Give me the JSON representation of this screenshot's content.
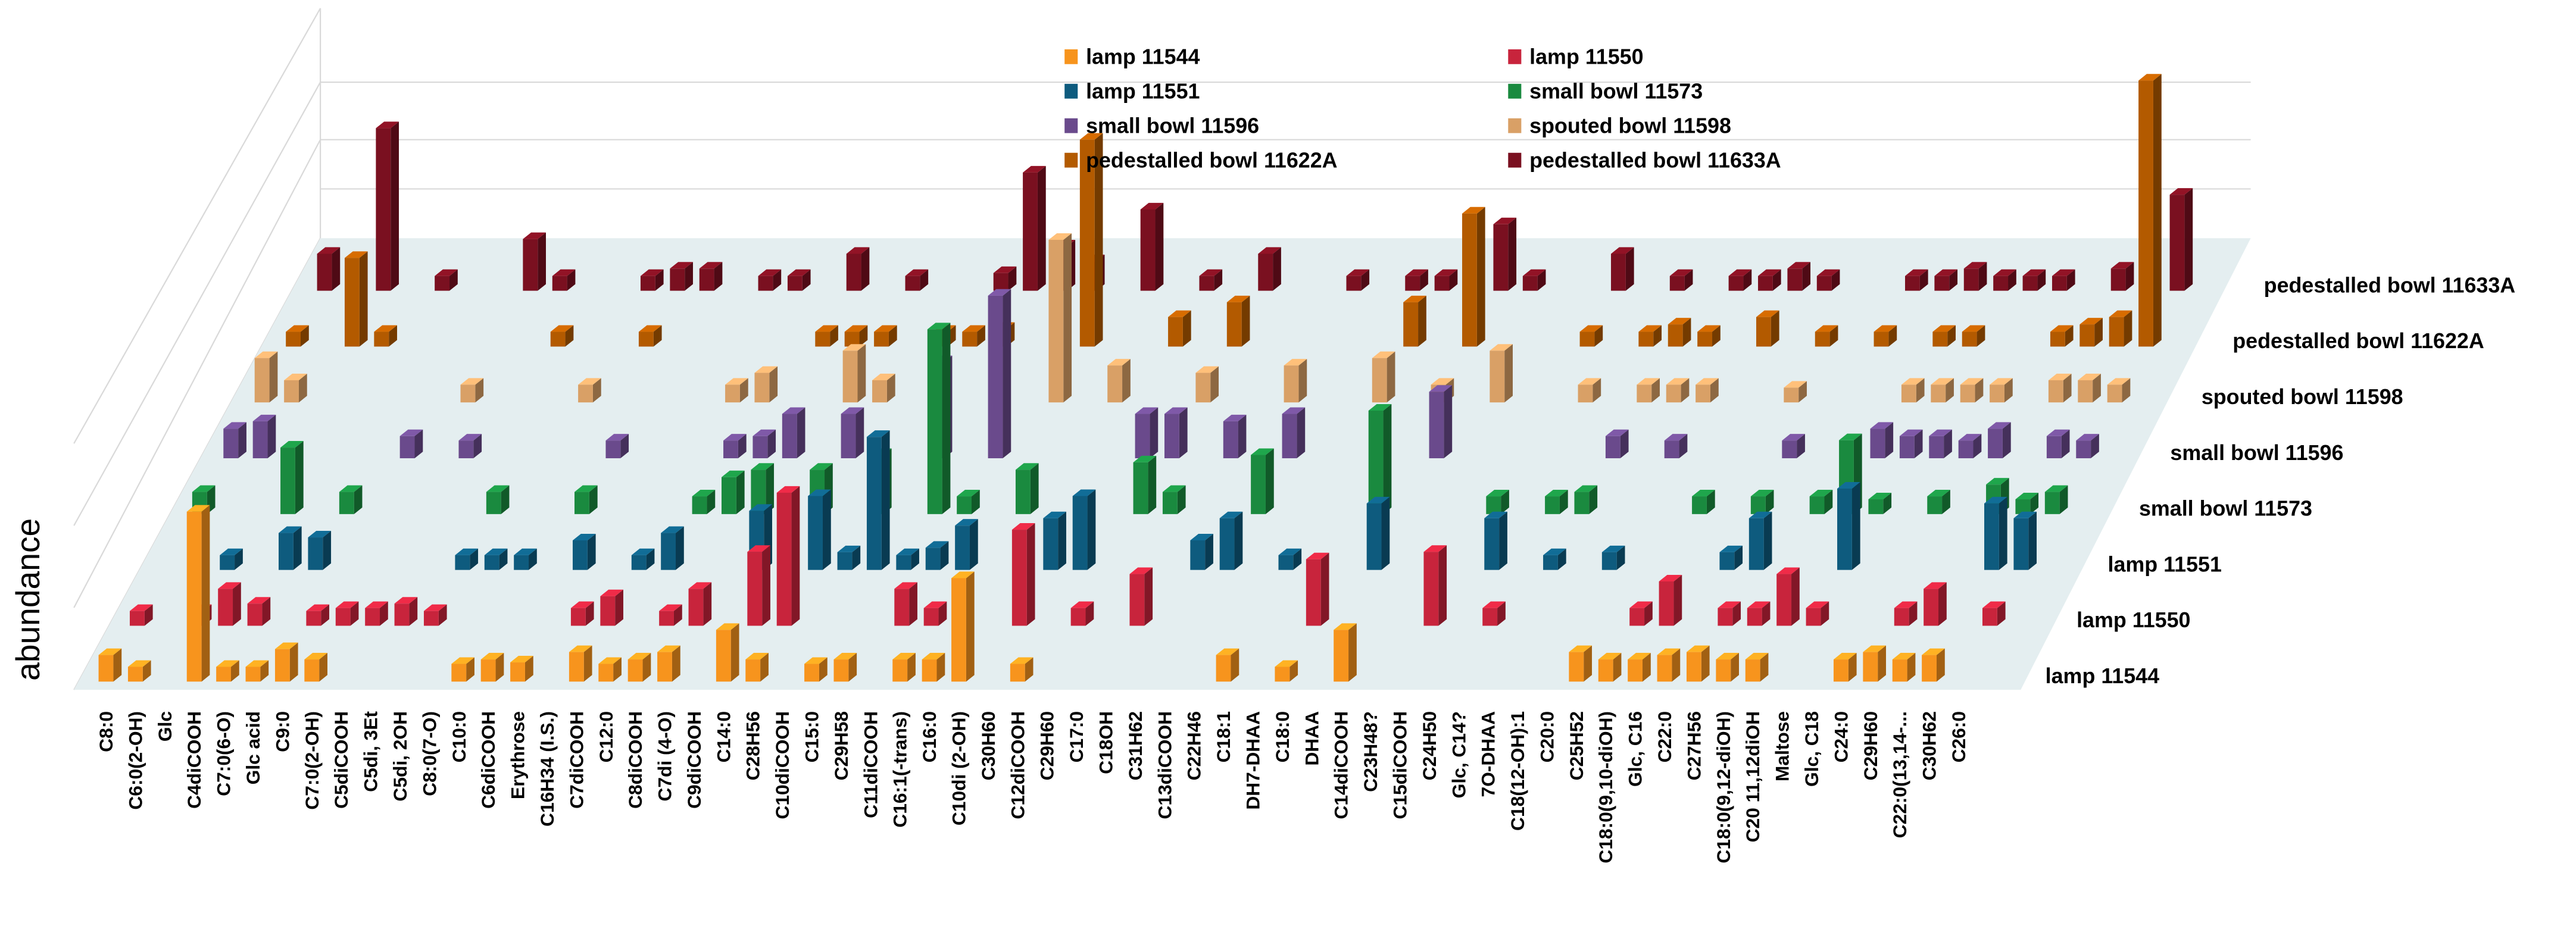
{
  "chart_data": {
    "type": "bar3d",
    "y_label": "abundance",
    "legend": "top",
    "categories": [
      "C8:0",
      "C6:0(2-OH)",
      "Glc",
      "C4diCOOH",
      "C7:0(6-O)",
      "Glc acid",
      "C9:0",
      "C7:0(2-OH)",
      "C5diCOOH",
      "C5di, 3Et",
      "C5di, 2OH",
      "C8:0(7-O)",
      "C10:0",
      "C6diCOOH",
      "Erythrose",
      "C16H34 (I.S.)",
      "C7diCOOH",
      "C12:0",
      "C8diCOOH",
      "C7di (4-O)",
      "C9diCOOH",
      "C14:0",
      "C28H56",
      "C10diCOOH",
      "C15:0",
      "C29H58",
      "C11diCOOH",
      "C16:1(-trans)",
      "C16:0",
      "C10di (2-OH)",
      "C30H60",
      "C12diCOOH",
      "C29H60",
      "C17:0",
      "C18OH",
      "C31H62",
      "C13diCOOH",
      "C22H46",
      "C18:1",
      "DH7-DHAA",
      "C18:0",
      "DHAA",
      "C14diCOOH",
      "C23H48?",
      "C15diCOOH",
      "C24H50",
      "Glc, C14?",
      "7O-DHAA",
      "C18(12-OH):1",
      "C20:0",
      "C25H52",
      "C18:0(9,10-diOH)",
      "Glc, C16",
      "C22:0",
      "C27H56",
      "C18:0(9,12-diOH)",
      "C20 11,12diOH",
      "Maltose",
      "Glc, C18",
      "C24:0",
      "C29H60",
      "C22:0(13,14-...",
      "C30H62",
      "C26:0"
    ],
    "series": [
      {
        "name": "lamp 11544",
        "color": "#f7941d",
        "values": [
          1.8,
          1,
          null,
          11.5,
          1,
          1,
          2.2,
          1.5,
          null,
          null,
          null,
          null,
          1.2,
          1.5,
          1.3,
          null,
          2,
          1.2,
          1.5,
          2,
          null,
          3.5,
          1.5,
          null,
          1.2,
          1.5,
          null,
          1.5,
          1.5,
          7,
          null,
          1.2,
          null,
          null,
          null,
          null,
          null,
          null,
          1.8,
          null,
          1,
          null,
          3.5,
          null,
          null,
          null,
          null,
          null,
          null,
          null,
          2,
          1.5,
          1.5,
          1.8,
          2,
          1.5,
          1.5,
          null,
          null,
          1.5,
          2,
          1.5,
          1.8,
          null
        ]
      },
      {
        "name": "lamp 11550",
        "color": "#c8243c",
        "values": [
          1,
          null,
          1,
          2.5,
          1.5,
          null,
          1,
          1.2,
          1.2,
          1.5,
          1,
          null,
          null,
          null,
          null,
          1.2,
          2,
          null,
          1,
          2.5,
          null,
          5,
          9,
          null,
          null,
          null,
          2.5,
          1.2,
          null,
          null,
          6.5,
          null,
          1.2,
          null,
          3.5,
          null,
          null,
          null,
          null,
          null,
          4.5,
          null,
          null,
          null,
          5,
          null,
          1.2,
          null,
          null,
          null,
          null,
          1.2,
          3,
          null,
          1.2,
          1.2,
          3.5,
          1.2,
          null,
          null,
          1.2,
          2.5,
          null,
          1.2
        ]
      },
      {
        "name": "lamp 11551",
        "color": "#0e5b7e",
        "values": [
          null,
          null,
          1,
          null,
          2.5,
          2.2,
          null,
          null,
          null,
          null,
          1,
          1,
          1,
          null,
          2,
          null,
          1,
          2.5,
          null,
          null,
          4,
          null,
          5,
          1.2,
          9,
          1,
          1.5,
          3,
          null,
          null,
          3.5,
          5,
          null,
          null,
          null,
          2,
          3.5,
          null,
          1,
          null,
          null,
          4.5,
          null,
          null,
          null,
          3.5,
          null,
          1,
          null,
          1.2,
          null,
          null,
          null,
          1.2,
          3.5,
          null,
          null,
          5.5,
          null,
          null,
          null,
          null,
          4.5,
          3.5
        ]
      },
      {
        "name": "small bowl 11573",
        "color": "#1a8a3f",
        "values": [
          1.5,
          null,
          null,
          4.5,
          null,
          1.5,
          null,
          null,
          null,
          null,
          1.5,
          null,
          null,
          1.5,
          null,
          null,
          null,
          1.2,
          2.5,
          3,
          null,
          3,
          null,
          4,
          null,
          12.5,
          1.2,
          null,
          3,
          null,
          null,
          null,
          3.5,
          1.5,
          null,
          null,
          4,
          null,
          null,
          null,
          7,
          null,
          null,
          null,
          1.2,
          null,
          1.2,
          1.5,
          null,
          null,
          null,
          1.2,
          null,
          1.2,
          null,
          1.2,
          5,
          1,
          null,
          1.2,
          null,
          2,
          1,
          1.5
        ]
      },
      {
        "name": "small bowl 11596",
        "color": "#6a4a8c",
        "values": [
          2,
          2.5,
          null,
          null,
          null,
          null,
          1.5,
          null,
          1.2,
          null,
          null,
          null,
          null,
          1.2,
          null,
          null,
          null,
          1.2,
          1.5,
          3,
          null,
          3,
          null,
          null,
          6.5,
          null,
          11,
          null,
          null,
          null,
          null,
          3,
          3,
          null,
          2.5,
          null,
          3,
          null,
          null,
          null,
          null,
          4.5,
          null,
          null,
          null,
          null,
          null,
          1.5,
          null,
          1.2,
          null,
          null,
          null,
          1.2,
          null,
          null,
          2,
          1.5,
          1.5,
          1.2,
          2,
          null,
          1.5,
          1.2
        ]
      },
      {
        "name": "spouted bowl 11598",
        "color": "#d9a066",
        "values": [
          3,
          1.5,
          null,
          null,
          null,
          null,
          null,
          1.2,
          null,
          null,
          null,
          1.2,
          null,
          null,
          null,
          null,
          1.2,
          2,
          null,
          null,
          3.5,
          1.5,
          null,
          null,
          null,
          null,
          null,
          11,
          null,
          2.5,
          null,
          null,
          2,
          null,
          null,
          2.5,
          null,
          null,
          3,
          null,
          1.2,
          null,
          3.5,
          null,
          null,
          1.2,
          null,
          1.2,
          1.2,
          1.2,
          null,
          null,
          1,
          null,
          null,
          null,
          1.2,
          1.2,
          1.2,
          1.2,
          null,
          1.5,
          1.5,
          1.2
        ]
      },
      {
        "name": "pedestalled bowl 11622A",
        "color": "#b35a00",
        "values": [
          1,
          null,
          6,
          1,
          null,
          null,
          null,
          null,
          null,
          1,
          null,
          null,
          1,
          null,
          null,
          null,
          null,
          null,
          1,
          1,
          1,
          null,
          1,
          1,
          1.2,
          null,
          null,
          14,
          null,
          null,
          2,
          null,
          3,
          null,
          null,
          null,
          null,
          null,
          3,
          null,
          9,
          null,
          null,
          null,
          1,
          null,
          1,
          1.5,
          1,
          null,
          2,
          null,
          1,
          null,
          1,
          null,
          1,
          1,
          null,
          null,
          1,
          1.5,
          2,
          18
        ]
      },
      {
        "name": "pedestalled bowl 11633A",
        "color": "#7a1020",
        "values": [
          2.5,
          null,
          11,
          null,
          1,
          null,
          null,
          3.5,
          1,
          null,
          null,
          1,
          1.5,
          1.5,
          null,
          1,
          1,
          null,
          2.5,
          null,
          1,
          null,
          null,
          1.2,
          8,
          3,
          2,
          null,
          5.5,
          null,
          1,
          null,
          2.5,
          null,
          null,
          1,
          null,
          1,
          1,
          null,
          4.5,
          1,
          null,
          null,
          2.5,
          null,
          1,
          null,
          1,
          1,
          1.5,
          1,
          null,
          null,
          1,
          1,
          1.5,
          1,
          1,
          1,
          null,
          1.5,
          null,
          6.5
        ]
      }
    ]
  }
}
